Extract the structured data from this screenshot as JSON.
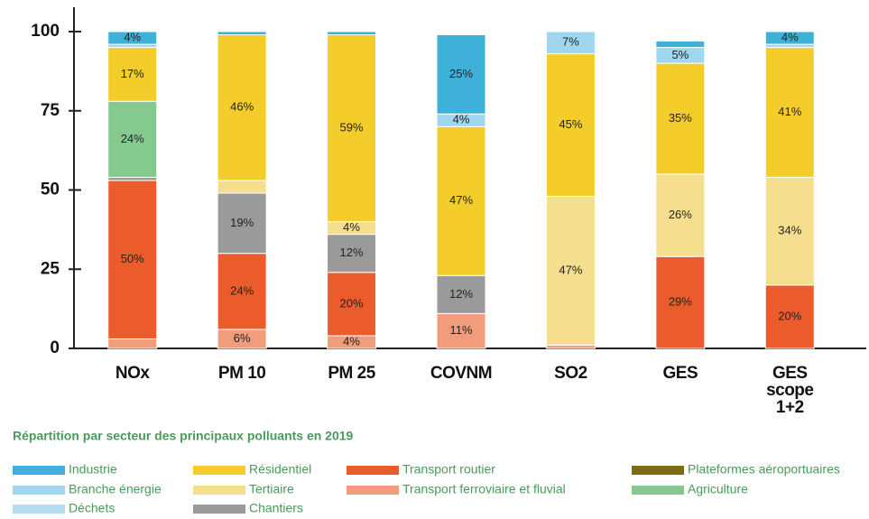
{
  "chart_data": {
    "type": "stacked_bar",
    "title": "Répartition par secteur des principaux polluants en 2019",
    "categories": [
      "NOx",
      "PM 10",
      "PM 25",
      "COVNM",
      "SO2",
      "GES",
      "GES scope 1+2"
    ],
    "ylim": [
      0,
      100
    ],
    "yticks": [
      0,
      25,
      50,
      75,
      100
    ],
    "series": [
      {
        "name": "Transport ferroviaire et fluvial",
        "color": "#f19d7b",
        "values": [
          3,
          6,
          4,
          11,
          1,
          0,
          0
        ],
        "value_labels": [
          null,
          "6%",
          "4%",
          "11%",
          null,
          null,
          null
        ]
      },
      {
        "name": "Transport routier",
        "color": "#ec5b2c",
        "values": [
          50,
          24,
          20,
          0,
          0,
          29,
          20
        ],
        "value_labels": [
          "50%",
          "24%",
          "20%",
          null,
          null,
          "29%",
          "20%"
        ]
      },
      {
        "name": "Chantiers",
        "color": "#9a9a9a",
        "values": [
          1,
          19,
          12,
          12,
          0,
          0,
          0
        ],
        "value_labels": [
          null,
          "19%",
          "12%",
          "12%",
          null,
          null,
          null
        ]
      },
      {
        "name": "Plateformes aéroportuaires",
        "color": "#7a6a1a",
        "values": [
          0,
          0,
          0,
          0,
          0,
          0,
          0
        ]
      },
      {
        "name": "Agriculture",
        "color": "#86c98e",
        "values": [
          24,
          0,
          0,
          0,
          0,
          0,
          0
        ],
        "value_labels": [
          "24%",
          null,
          null,
          null,
          null,
          null,
          null
        ]
      },
      {
        "name": "Tertiaire",
        "color": "#f5df8e",
        "values": [
          0,
          4,
          4,
          0,
          47,
          26,
          34
        ],
        "value_labels": [
          null,
          null,
          "4%",
          null,
          "47%",
          "26%",
          "34%"
        ]
      },
      {
        "name": "Résidentiel",
        "color": "#f4cd2a",
        "values": [
          17,
          46,
          59,
          47,
          45,
          35,
          41
        ],
        "value_labels": [
          "17%",
          "46%",
          "59%",
          "47%",
          "45%",
          "35%",
          "41%"
        ]
      },
      {
        "name": "Déchets",
        "color": "#b4ddf2",
        "values": [
          0,
          0,
          0,
          0,
          0,
          0,
          0
        ]
      },
      {
        "name": "Branche énergie",
        "color": "#9fd8ee",
        "values": [
          1,
          0,
          0,
          4,
          7,
          5,
          1
        ],
        "value_labels": [
          null,
          null,
          null,
          "4%",
          "7%",
          "5%",
          null
        ]
      },
      {
        "name": "Industrie",
        "color": "#3fb0d8",
        "values": [
          4,
          1,
          1,
          25,
          0,
          2,
          4
        ],
        "value_labels": [
          "4%",
          null,
          null,
          "25%",
          null,
          null,
          "4%"
        ]
      }
    ]
  }
}
